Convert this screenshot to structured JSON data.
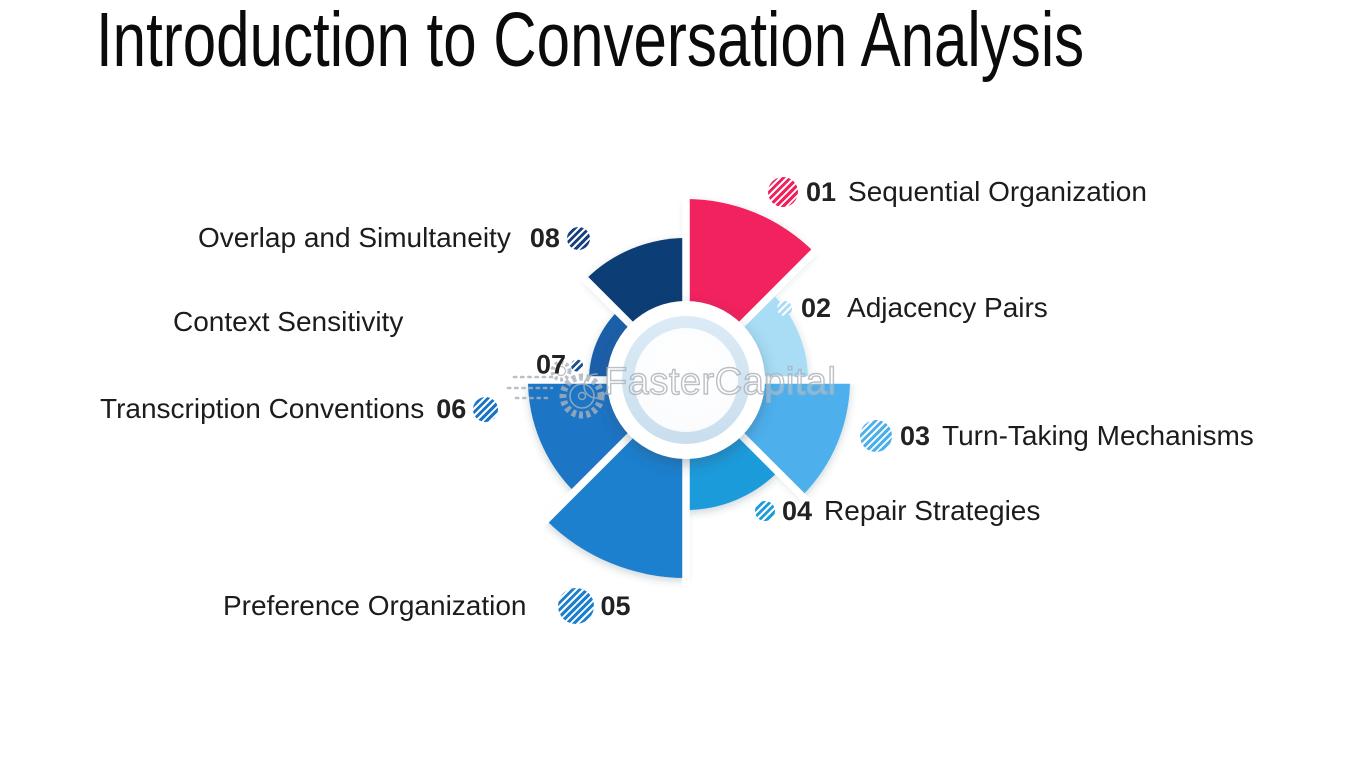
{
  "title": "Introduction to Conversation Analysis",
  "watermark": {
    "text": "FasterCapital"
  },
  "colors": {
    "background": "#ffffff",
    "text": "#1b1b1b",
    "separator": "#ffffff",
    "center_ring": "#d6e7f3",
    "watermark_stroke": "#a9b1b8"
  },
  "diagram": {
    "type": "pinwheel-infographic",
    "segment_count": 8,
    "wedges": [
      {
        "number": "01",
        "label": "Sequential Organization",
        "start": 0,
        "end": 45,
        "radius": 181,
        "color": "#F1215D",
        "dot_color": "#F1215D",
        "dot_size": 30
      },
      {
        "number": "02",
        "label": "Adjacency Pairs",
        "start": 45,
        "end": 90,
        "radius": 122,
        "color": "#A8DDF5",
        "dot_color": "#A8DDF5",
        "dot_size": 15
      },
      {
        "number": "03",
        "label": "Turn-Taking Mechanisms",
        "start": 90,
        "end": 135,
        "radius": 164,
        "color": "#4DB0EC",
        "dot_color": "#4DB0EC",
        "dot_size": 32
      },
      {
        "number": "04",
        "label": "Repair Strategies",
        "start": 135,
        "end": 180,
        "radius": 130,
        "color": "#1E9BDB",
        "dot_color": "#1E9BDB",
        "dot_size": 20
      },
      {
        "number": "05",
        "label": "Preference Organization",
        "start": 180,
        "end": 225,
        "radius": 198,
        "color": "#1C80CE",
        "dot_color": "#1C80CE",
        "dot_size": 36
      },
      {
        "number": "06",
        "label": "Transcription Conventions",
        "start": 225,
        "end": 270,
        "radius": 158,
        "color": "#1B74C5",
        "dot_color": "#1B74C5",
        "dot_size": 25
      },
      {
        "number": "07",
        "label": "Context Sensitivity",
        "start": 270,
        "end": 315,
        "radius": 97,
        "color": "#1E5FA9",
        "dot_color": "#1E4E94",
        "dot_size": 12
      },
      {
        "number": "08",
        "label": "Overlap and Simultaneity",
        "start": 315,
        "end": 360,
        "radius": 142,
        "color": "#113C74",
        "dot_color": "#16407E",
        "dot_size": 23
      }
    ]
  }
}
